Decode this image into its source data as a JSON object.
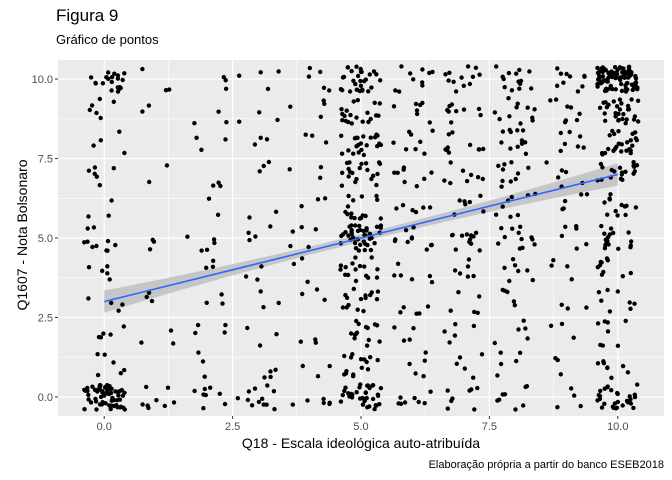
{
  "chart_data": {
    "type": "scatter",
    "title": "Figura 9",
    "subtitle": "Gráfico de pontos",
    "xlabel": "Q18 - Escala ideológica auto-atribuída",
    "ylabel": "Q1607 - Nota Bolsonaro",
    "caption": "Elaboração própria a partir do banco ESEB2018",
    "xlim": [
      -0.9,
      10.9
    ],
    "ylim": [
      -0.6,
      10.6
    ],
    "x_ticks": [
      0,
      2.5,
      5,
      7.5,
      10
    ],
    "x_tick_labels": [
      "0.0",
      "2.5",
      "5.0",
      "7.5",
      "10.0"
    ],
    "y_ticks": [
      0,
      2.5,
      5,
      7.5,
      10
    ],
    "y_tick_labels": [
      "0.0",
      "2.5",
      "5.0",
      "7.5",
      "10.0"
    ],
    "grid": true,
    "colors": {
      "points": "#000000",
      "fit_line": "#3366ff",
      "confidence_band": "#bfbfbf",
      "panel_background": "#ebebeb",
      "grid": "#ffffff"
    },
    "fit": {
      "method": "linear",
      "x": [
        0,
        10
      ],
      "y": [
        3.0,
        7.0
      ],
      "ci_halfwidth_ends": 0.35,
      "ci_halfwidth_mid": 0.12
    },
    "points_description": {
      "x_levels": [
        0,
        1,
        2,
        3,
        4,
        5,
        6,
        7,
        8,
        9,
        10
      ],
      "jitter": 0.4,
      "y_levels": [
        0,
        1,
        2,
        3,
        4,
        5,
        6,
        7,
        8,
        9,
        10
      ],
      "approx_counts": {
        "0": {
          "0": 60,
          "1": 6,
          "2": 5,
          "3": 4,
          "4": 5,
          "5": 10,
          "6": 3,
          "7": 6,
          "8": 4,
          "9": 6,
          "10": 20
        },
        "1": {
          "0": 8,
          "2": 3,
          "3": 3,
          "5": 3,
          "7": 2,
          "9": 2,
          "10": 3
        },
        "2": {
          "0": 8,
          "1": 3,
          "2": 4,
          "3": 3,
          "4": 3,
          "5": 5,
          "6": 2,
          "7": 3,
          "8": 3,
          "9": 3,
          "10": 3
        },
        "3": {
          "0": 12,
          "1": 4,
          "2": 3,
          "3": 3,
          "4": 3,
          "5": 4,
          "6": 2,
          "7": 3,
          "8": 3,
          "9": 3,
          "10": 4
        },
        "4": {
          "0": 6,
          "1": 3,
          "2": 3,
          "3": 3,
          "4": 3,
          "5": 5,
          "6": 3,
          "7": 3,
          "8": 3,
          "9": 4,
          "10": 5
        },
        "5": {
          "0": 35,
          "1": 15,
          "2": 14,
          "3": 15,
          "4": 16,
          "5": 40,
          "6": 16,
          "7": 20,
          "8": 22,
          "9": 20,
          "10": 30
        },
        "6": {
          "0": 8,
          "1": 5,
          "2": 4,
          "3": 5,
          "4": 6,
          "5": 10,
          "6": 6,
          "7": 8,
          "8": 8,
          "9": 7,
          "10": 10
        },
        "7": {
          "0": 8,
          "1": 5,
          "2": 5,
          "3": 5,
          "4": 6,
          "5": 12,
          "6": 7,
          "7": 8,
          "8": 10,
          "9": 9,
          "10": 12
        },
        "8": {
          "0": 8,
          "1": 5,
          "2": 5,
          "3": 5,
          "4": 7,
          "5": 12,
          "6": 8,
          "7": 10,
          "8": 12,
          "9": 11,
          "10": 14
        },
        "9": {
          "0": 4,
          "1": 3,
          "2": 3,
          "3": 3,
          "4": 4,
          "5": 6,
          "6": 5,
          "7": 6,
          "8": 7,
          "9": 8,
          "10": 10
        },
        "10": {
          "0": 30,
          "1": 8,
          "2": 8,
          "3": 8,
          "4": 10,
          "5": 18,
          "6": 12,
          "7": 20,
          "8": 25,
          "9": 30,
          "10": 90
        }
      }
    }
  }
}
